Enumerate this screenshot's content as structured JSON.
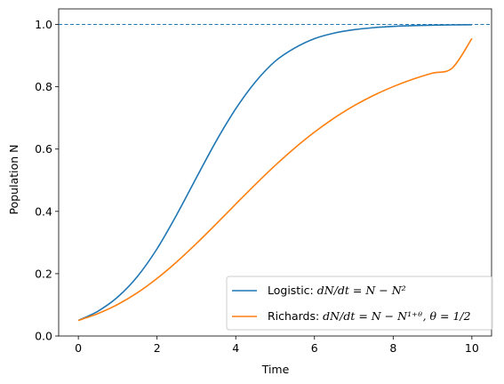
{
  "chart_data": {
    "type": "line",
    "xlabel": "Time",
    "ylabel": "Population N",
    "xlim": [
      -0.5,
      10.5
    ],
    "ylim": [
      0.0,
      1.05
    ],
    "xticks": [
      0,
      2,
      4,
      6,
      8,
      10
    ],
    "yticks": [
      0.0,
      0.2,
      0.4,
      0.6,
      0.8,
      1.0
    ],
    "xtick_labels": [
      "0",
      "2",
      "4",
      "6",
      "8",
      "10"
    ],
    "ytick_labels": [
      "0.0",
      "0.2",
      "0.4",
      "0.6",
      "0.8",
      "1.0"
    ],
    "grid": false,
    "legend_position": "lower-right",
    "reference_line": {
      "y": 1.0,
      "style": "dashed",
      "color": "#1f77b4"
    },
    "initial_value": 0.05,
    "series": [
      {
        "name_prefix": "Logistic: ",
        "name_formula": "dN/dt = N − N²",
        "color": "#1f77b4",
        "x": [
          0,
          0.5,
          1,
          1.5,
          2,
          2.5,
          3,
          3.5,
          4,
          4.5,
          5,
          5.5,
          6,
          6.5,
          7,
          7.5,
          8,
          8.5,
          9,
          9.5,
          10
        ],
        "y": [
          0.05,
          0.0798,
          0.1252,
          0.1909,
          0.28,
          0.3894,
          0.5083,
          0.6251,
          0.7294,
          0.8156,
          0.8818,
          0.9246,
          0.9546,
          0.9723,
          0.9831,
          0.9897,
          0.9937,
          0.9962,
          0.9977,
          0.9986,
          0.9991
        ]
      },
      {
        "name_prefix": "Richards: ",
        "name_formula": "dN/dt = N − N¹⁺ᶿ, θ = 1/2",
        "color": "#ff7f0e",
        "x": [
          0,
          0.5,
          1,
          1.5,
          2,
          2.5,
          3,
          3.5,
          4,
          4.5,
          5,
          5.5,
          6,
          6.5,
          7,
          7.5,
          8,
          8.5,
          9,
          9.5,
          10
        ],
        "y": [
          0.05,
          0.0719,
          0.1013,
          0.1389,
          0.1848,
          0.2379,
          0.2968,
          0.3594,
          0.4235,
          0.4868,
          0.5473,
          0.6035,
          0.6544,
          0.6995,
          0.7387,
          0.7722,
          0.8005,
          0.8242,
          0.8438,
          0.86,
          0.9549
        ]
      }
    ]
  }
}
